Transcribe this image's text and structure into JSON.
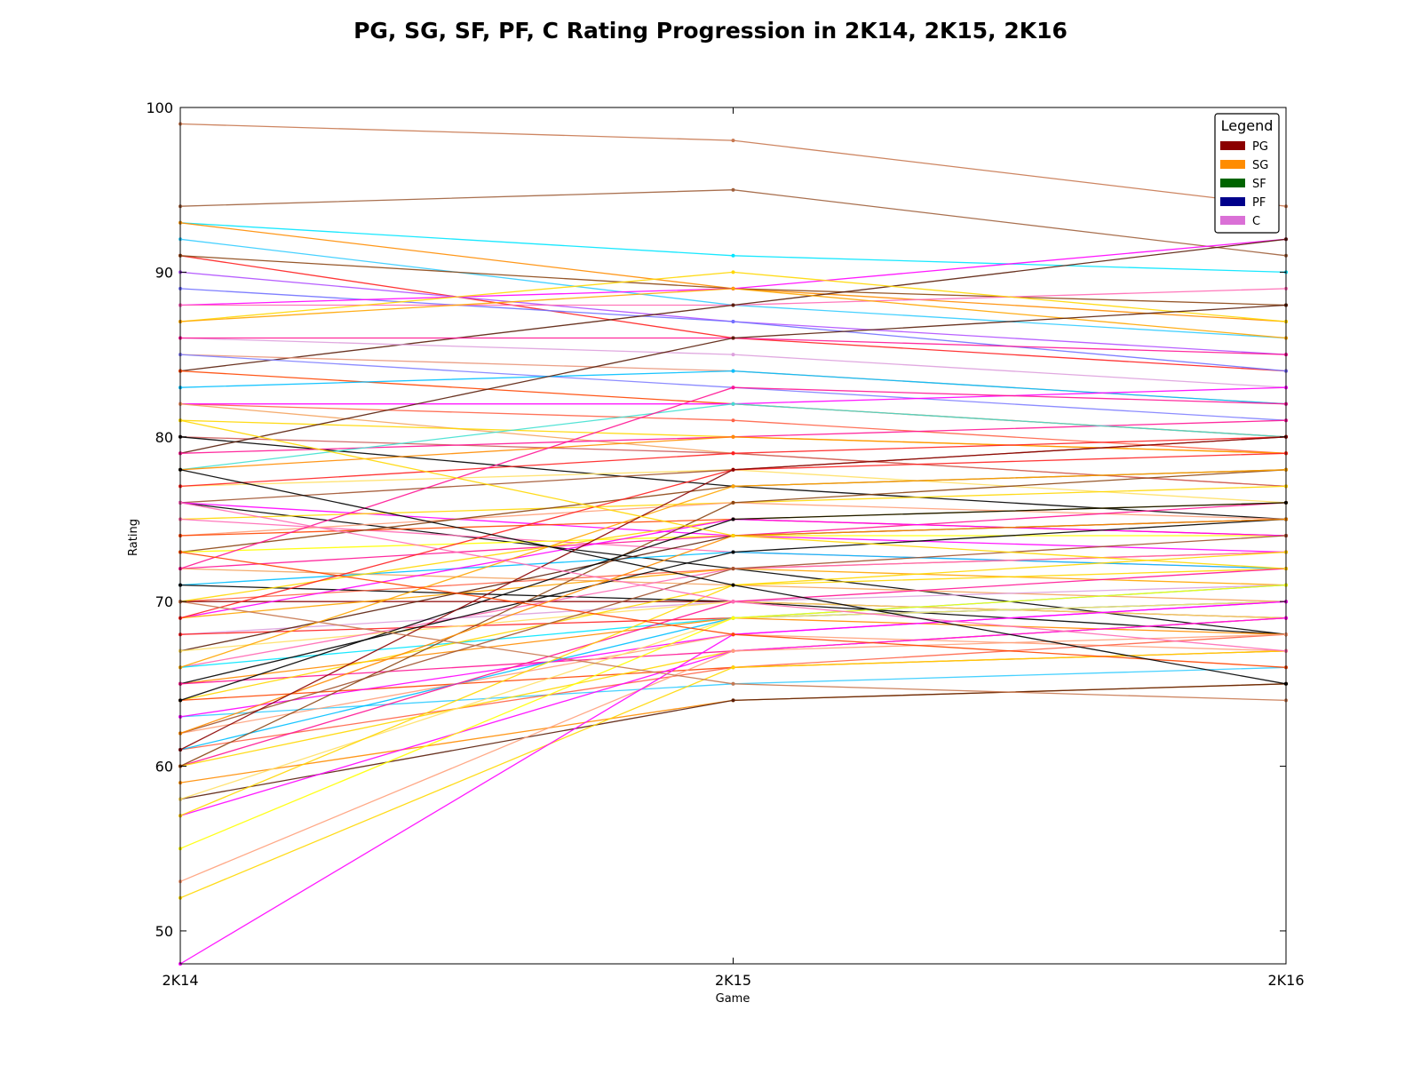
{
  "chart_data": {
    "type": "line",
    "title": "PG, SG, SF, PF, C Rating Progression in 2K14, 2K15, 2K16",
    "xlabel": "Game",
    "ylabel": "Rating",
    "categories": [
      "2K14",
      "2K15",
      "2K16"
    ],
    "ylim": [
      48,
      100
    ],
    "yticks": [
      50,
      60,
      70,
      80,
      90,
      100
    ],
    "grid": false,
    "legend": {
      "title": "Legend",
      "placement": "top-right",
      "entries": [
        {
          "label": "PG",
          "color": "#8b0000"
        },
        {
          "label": "SG",
          "color": "#ff8c00"
        },
        {
          "label": "SF",
          "color": "#006400"
        },
        {
          "label": "PF",
          "color": "#00008b"
        },
        {
          "label": "C",
          "color": "#da70d6"
        }
      ]
    },
    "series": [
      {
        "color": "#c87850",
        "values": [
          99,
          98,
          94
        ]
      },
      {
        "color": "#a0603c",
        "values": [
          94,
          95,
          91
        ]
      },
      {
        "color": "#00e5ff",
        "values": [
          93,
          91,
          90
        ]
      },
      {
        "color": "#ff8c00",
        "values": [
          93,
          89,
          87
        ]
      },
      {
        "color": "#33ccff",
        "values": [
          92,
          88,
          86
        ]
      },
      {
        "color": "#ff2020",
        "values": [
          91,
          86,
          84
        ]
      },
      {
        "color": "#8b4513",
        "values": [
          91,
          89,
          88
        ]
      },
      {
        "color": "#b050ff",
        "values": [
          90,
          87,
          85
        ]
      },
      {
        "color": "#7070ff",
        "values": [
          89,
          87,
          84
        ]
      },
      {
        "color": "#ff00ff",
        "values": [
          88,
          89,
          92
        ]
      },
      {
        "color": "#ff69b4",
        "values": [
          88,
          88,
          89
        ]
      },
      {
        "color": "#5a1e0a",
        "values": [
          84,
          88,
          92
        ]
      },
      {
        "color": "#ffd700",
        "values": [
          87,
          90,
          87
        ]
      },
      {
        "color": "#ffa500",
        "values": [
          87,
          89,
          86
        ]
      },
      {
        "color": "#dda0dd",
        "values": [
          86,
          85,
          83
        ]
      },
      {
        "color": "#ff1493",
        "values": [
          86,
          86,
          85
        ]
      },
      {
        "color": "#e9967a",
        "values": [
          85,
          84,
          82
        ]
      },
      {
        "color": "#8080ff",
        "values": [
          85,
          83,
          81
        ]
      },
      {
        "color": "#ff4500",
        "values": [
          84,
          82,
          80
        ]
      },
      {
        "color": "#00bfff",
        "values": [
          83,
          84,
          82
        ]
      },
      {
        "color": "#ff6347",
        "values": [
          82,
          81,
          79
        ]
      },
      {
        "color": "#ff00ff",
        "values": [
          82,
          82,
          83
        ]
      },
      {
        "color": "#f4a460",
        "values": [
          82,
          79,
          77
        ]
      },
      {
        "color": "#ffd700",
        "values": [
          81,
          80,
          79
        ]
      },
      {
        "color": "#cd5c5c",
        "values": [
          80,
          79,
          77
        ]
      },
      {
        "color": "#000000",
        "values": [
          80,
          77,
          75
        ]
      },
      {
        "color": "#5a1e0a",
        "values": [
          79,
          86,
          88
        ]
      },
      {
        "color": "#ff1493",
        "values": [
          79,
          80,
          81
        ]
      },
      {
        "color": "#40e0d0",
        "values": [
          78,
          82,
          80
        ]
      },
      {
        "color": "#ff8c00",
        "values": [
          78,
          80,
          79
        ]
      },
      {
        "color": "#ffe066",
        "values": [
          77,
          78,
          76
        ]
      },
      {
        "color": "#ff2020",
        "values": [
          77,
          79,
          80
        ]
      },
      {
        "color": "#a0522d",
        "values": [
          76,
          78,
          80
        ]
      },
      {
        "color": "#000000",
        "values": [
          76,
          72,
          68
        ]
      },
      {
        "color": "#ff00ff",
        "values": [
          76,
          74,
          73
        ]
      },
      {
        "color": "#ffd700",
        "values": [
          75,
          76,
          77
        ]
      },
      {
        "color": "#ff69b4",
        "values": [
          75,
          73,
          72
        ]
      },
      {
        "color": "#ffa07a",
        "values": [
          74,
          76,
          75
        ]
      },
      {
        "color": "#ff4500",
        "values": [
          74,
          75,
          74
        ]
      },
      {
        "color": "#8b4513",
        "values": [
          73,
          77,
          78
        ]
      },
      {
        "color": "#ffff00",
        "values": [
          73,
          74,
          74
        ]
      },
      {
        "color": "#ff1493",
        "values": [
          72,
          74,
          76
        ]
      },
      {
        "color": "#f4a460",
        "values": [
          72,
          71,
          70
        ]
      },
      {
        "color": "#00bfff",
        "values": [
          71,
          73,
          72
        ]
      },
      {
        "color": "#000000",
        "values": [
          71,
          70,
          68
        ]
      },
      {
        "color": "#ff6347",
        "values": [
          70,
          72,
          73
        ]
      },
      {
        "color": "#ffd700",
        "values": [
          70,
          75,
          76
        ]
      },
      {
        "color": "#8b0000",
        "values": [
          70,
          70,
          69
        ]
      },
      {
        "color": "#ff00ff",
        "values": [
          69,
          75,
          74
        ]
      },
      {
        "color": "#ffa500",
        "values": [
          69,
          72,
          71
        ]
      },
      {
        "color": "#dda0dd",
        "values": [
          68,
          70,
          71
        ]
      },
      {
        "color": "#ff2020",
        "values": [
          68,
          69,
          70
        ]
      },
      {
        "color": "#5a1e0a",
        "values": [
          67,
          74,
          75
        ]
      },
      {
        "color": "#ffe066",
        "values": [
          67,
          70,
          69
        ]
      },
      {
        "color": "#ff69b4",
        "values": [
          66,
          72,
          73
        ]
      },
      {
        "color": "#00e5ff",
        "values": [
          66,
          69,
          70
        ]
      },
      {
        "color": "#ff8c00",
        "values": [
          65,
          69,
          68
        ]
      },
      {
        "color": "#000000",
        "values": [
          65,
          73,
          75
        ]
      },
      {
        "color": "#ff1493",
        "values": [
          65,
          67,
          69
        ]
      },
      {
        "color": "#ffd700",
        "values": [
          64,
          71,
          72
        ]
      },
      {
        "color": "#ff4500",
        "values": [
          64,
          66,
          67
        ]
      },
      {
        "color": "#33ccff",
        "values": [
          63,
          65,
          66
        ]
      },
      {
        "color": "#ff00ff",
        "values": [
          63,
          68,
          70
        ]
      },
      {
        "color": "#ffa07a",
        "values": [
          62,
          68,
          67
        ]
      },
      {
        "color": "#a0522d",
        "values": [
          62,
          72,
          74
        ]
      },
      {
        "color": "#ff6347",
        "values": [
          61,
          66,
          68
        ]
      },
      {
        "color": "#00bfff",
        "values": [
          61,
          69,
          71
        ]
      },
      {
        "color": "#ff1493",
        "values": [
          60,
          70,
          72
        ]
      },
      {
        "color": "#ffd700",
        "values": [
          60,
          67,
          69
        ]
      },
      {
        "color": "#8b4513",
        "values": [
          60,
          76,
          78
        ]
      },
      {
        "color": "#ff8c00",
        "values": [
          59,
          64,
          65
        ]
      },
      {
        "color": "#5a1e0a",
        "values": [
          58,
          64,
          65
        ]
      },
      {
        "color": "#ffe066",
        "values": [
          58,
          69,
          70
        ]
      },
      {
        "color": "#ff00ff",
        "values": [
          57,
          67,
          69
        ]
      },
      {
        "color": "#ffd700",
        "values": [
          57,
          71,
          73
        ]
      },
      {
        "color": "#ffff00",
        "values": [
          55,
          69,
          71
        ]
      },
      {
        "color": "#ffa07a",
        "values": [
          53,
          67,
          68
        ]
      },
      {
        "color": "#ffd700",
        "values": [
          52,
          66,
          67
        ]
      },
      {
        "color": "#ff00ff",
        "values": [
          48,
          68,
          70
        ]
      },
      {
        "color": "#ff1493",
        "values": [
          72,
          83,
          82
        ]
      },
      {
        "color": "#ff2020",
        "values": [
          69,
          78,
          79
        ]
      },
      {
        "color": "#ffa500",
        "values": [
          66,
          77,
          78
        ]
      },
      {
        "color": "#000000",
        "values": [
          64,
          75,
          76
        ]
      },
      {
        "color": "#ff8c00",
        "values": [
          62,
          74,
          75
        ]
      },
      {
        "color": "#8b0000",
        "values": [
          61,
          78,
          80
        ]
      },
      {
        "color": "#ff69b4",
        "values": [
          76,
          70,
          67
        ]
      },
      {
        "color": "#ff4500",
        "values": [
          73,
          68,
          66
        ]
      },
      {
        "color": "#ffd700",
        "values": [
          81,
          74,
          72
        ]
      },
      {
        "color": "#000000",
        "values": [
          78,
          71,
          65
        ]
      },
      {
        "color": "#c87850",
        "values": [
          70,
          65,
          64
        ]
      }
    ]
  }
}
